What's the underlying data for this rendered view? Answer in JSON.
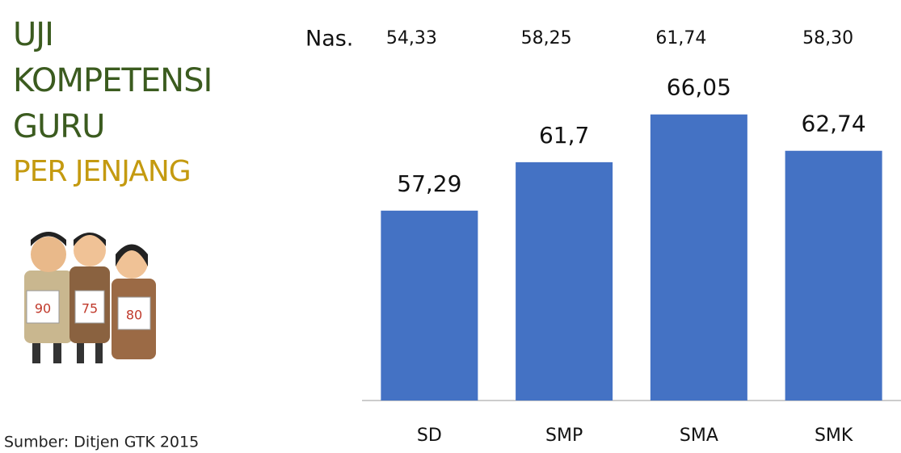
{
  "chart_data": {
    "type": "bar",
    "title_lines": [
      "UJI",
      "KOMPETENSI",
      "GURU"
    ],
    "subtitle": "PER JENJANG",
    "source": "Sumber: Ditjen GTK 2015",
    "categories": [
      "SD",
      "SMP",
      "SMA",
      "SMK"
    ],
    "values": [
      57.29,
      61.7,
      66.05,
      62.74
    ],
    "value_labels": [
      "57,29",
      "61,7",
      "66,05",
      "62,74"
    ],
    "national_label": "Nas.",
    "national_values": [
      54.33,
      58.25,
      61.74,
      58.3
    ],
    "national_value_labels": [
      "54,33",
      "58,25",
      "61,74",
      "58,30"
    ],
    "illustration_cards": [
      "90",
      "75",
      "80"
    ],
    "color": "#4472c4",
    "title_color": "#3b5b1f",
    "subtitle_color": "#c49a10",
    "ylim": [
      40,
      75
    ]
  }
}
